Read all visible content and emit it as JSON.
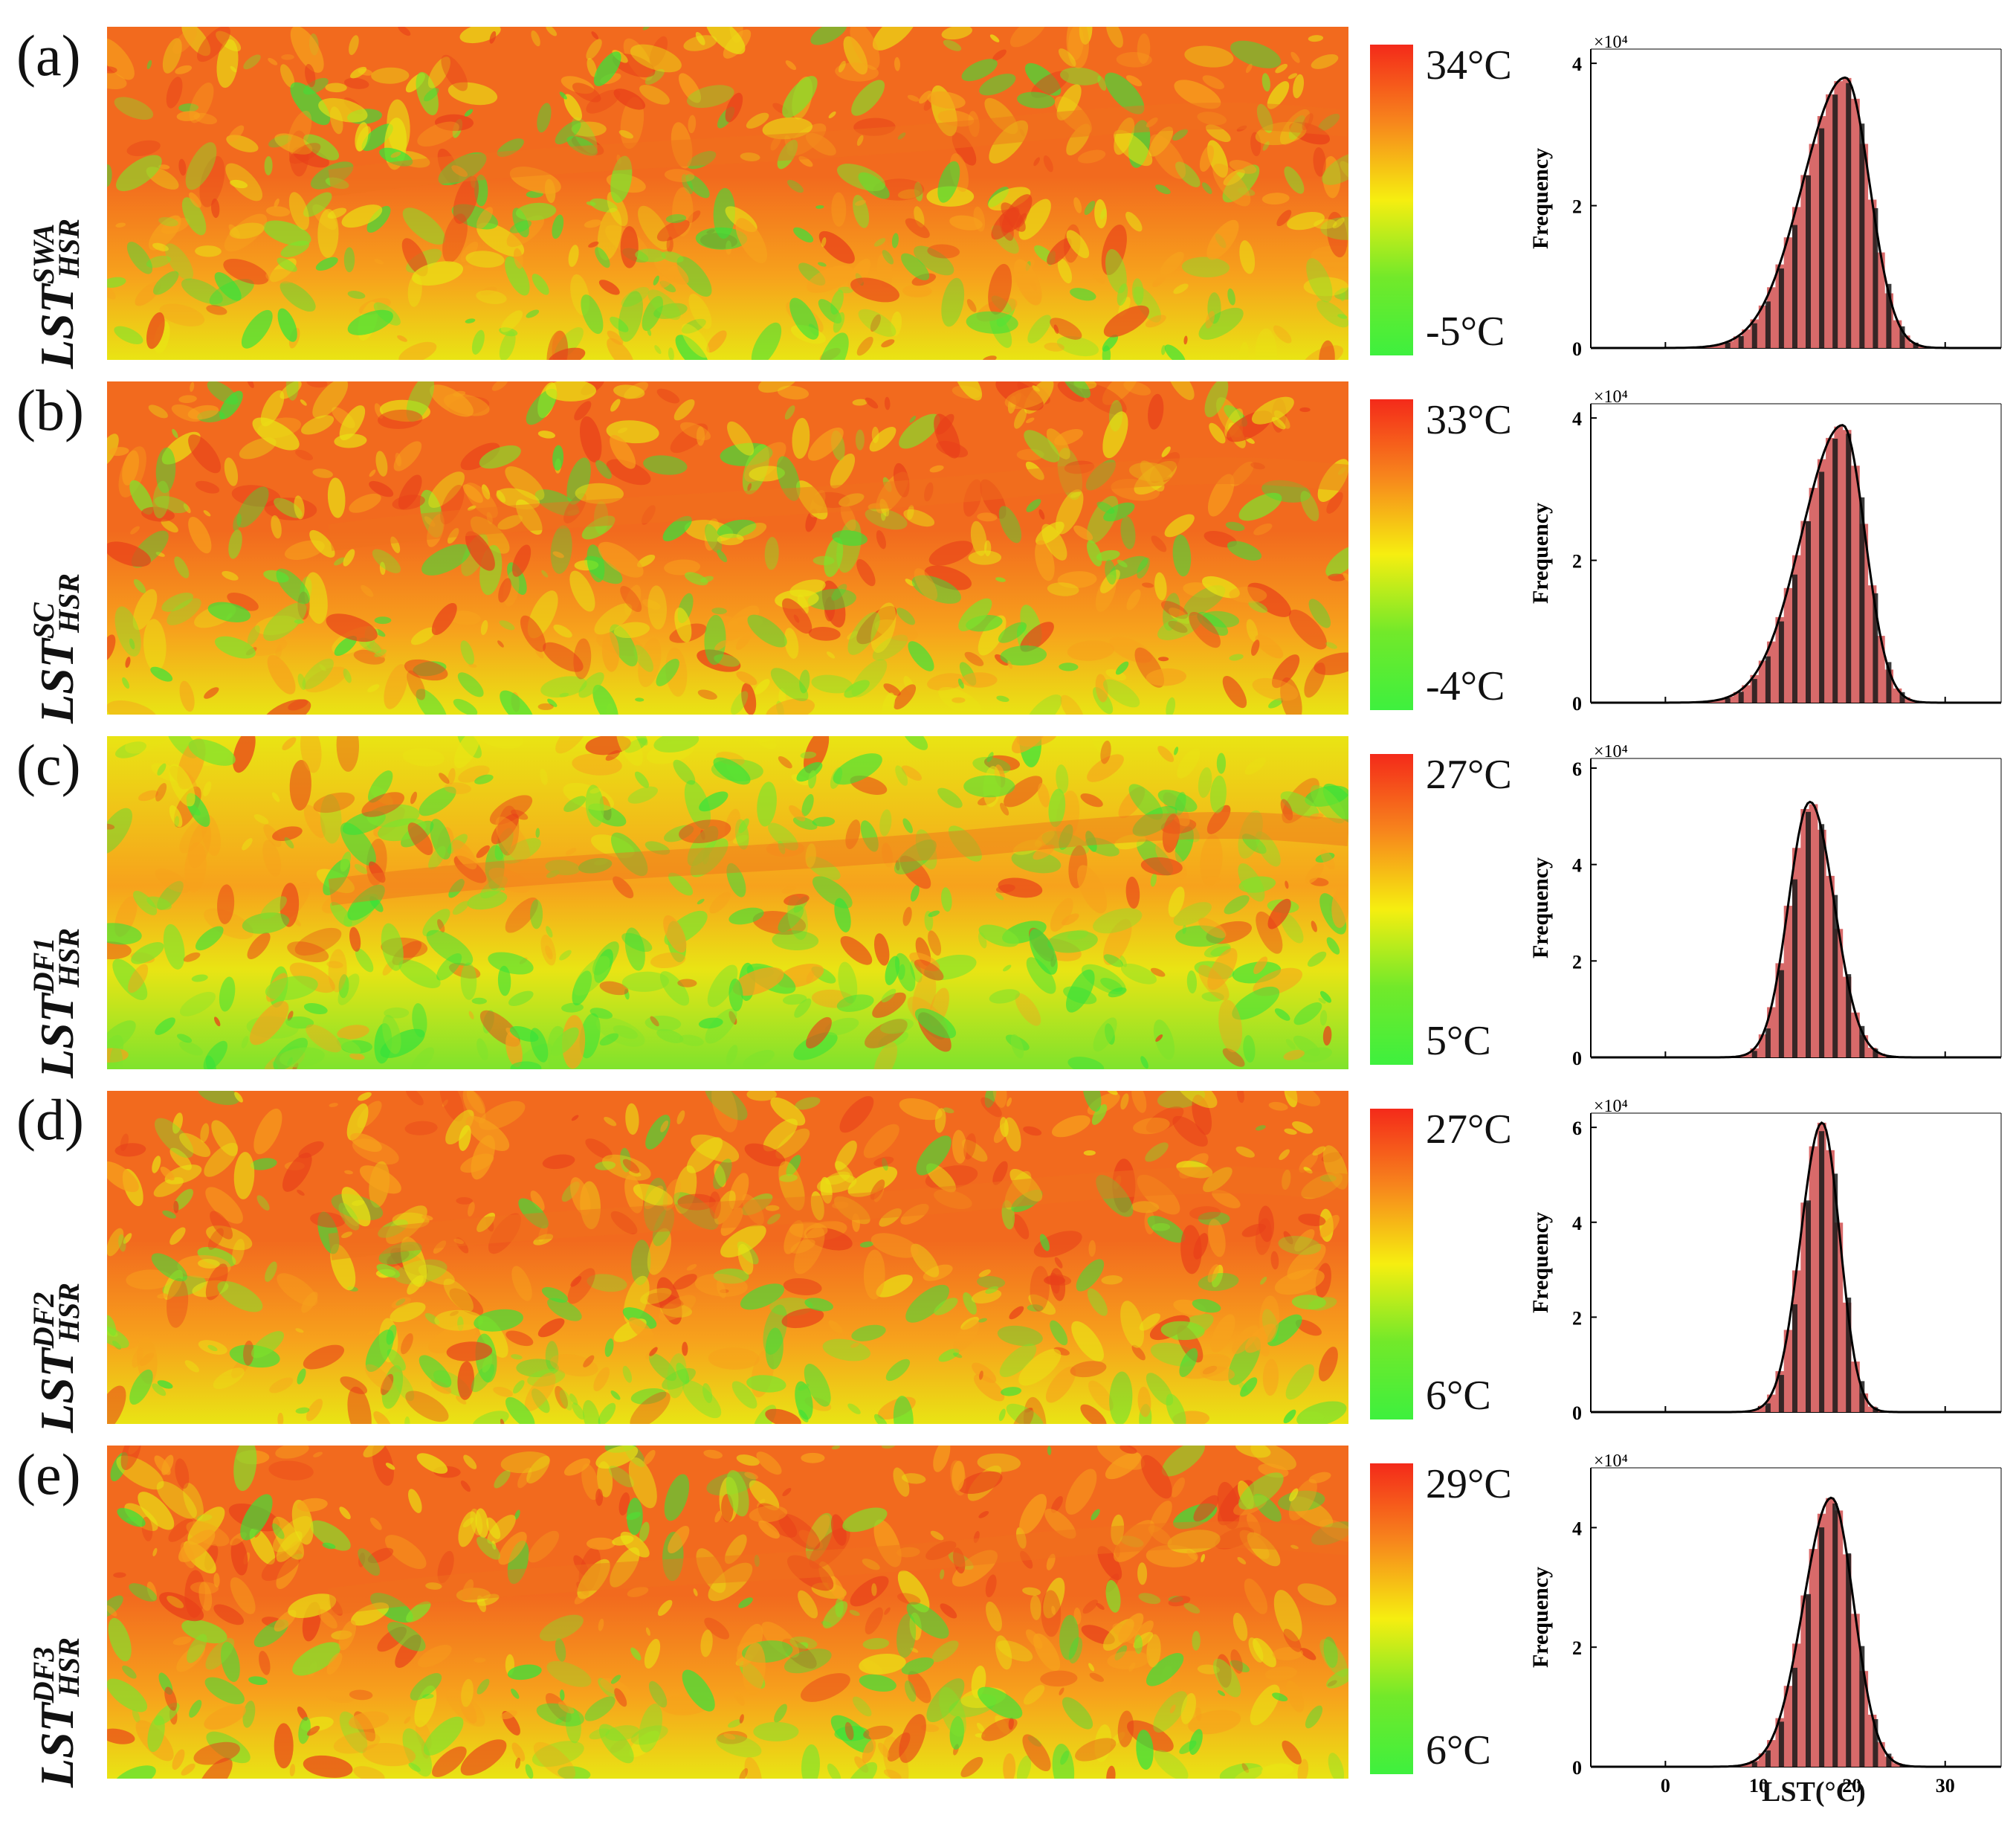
{
  "figure": {
    "panels": [
      {
        "tag": "(a)",
        "ylabel_base": "LST",
        "ylabel_sup": "SWA",
        "ylabel_sub": "HSR",
        "cbar_max": "34°C",
        "cbar_min": "-5°C"
      },
      {
        "tag": "(b)",
        "ylabel_base": "LST",
        "ylabel_sup": "SC",
        "ylabel_sub": "HSR",
        "cbar_max": "33°C",
        "cbar_min": "-4°C"
      },
      {
        "tag": "(c)",
        "ylabel_base": "LST",
        "ylabel_sup": "DF1",
        "ylabel_sub": "HSR",
        "cbar_max": "27°C",
        "cbar_min": "5°C"
      },
      {
        "tag": "(d)",
        "ylabel_base": "LST",
        "ylabel_sup": "DF2",
        "ylabel_sub": "HSR",
        "cbar_max": "27°C",
        "cbar_min": "6°C"
      },
      {
        "tag": "(e)",
        "ylabel_base": "LST",
        "ylabel_sup": "DF3",
        "ylabel_sub": "HSR",
        "cbar_max": "29°C",
        "cbar_min": "6°C"
      }
    ],
    "colormap": [
      "#f42a1a",
      "#f7861c",
      "#f6ee10",
      "#72e92a",
      "#3ef03e"
    ],
    "map_colors": {
      "hot": "#f26a1e",
      "warm": "#f7a21c",
      "mild": "#e9e414",
      "cool": "#7fe32c",
      "cold": "#38e23a"
    }
  },
  "chart_data": [
    {
      "type": "bar",
      "title": "",
      "xlabel": "",
      "ylabel": "Frequency",
      "y_multiplier_label": "×10⁴",
      "xlim": [
        -8,
        36
      ],
      "xticks": [
        0,
        10,
        20,
        30
      ],
      "ylim": [
        0,
        4.2
      ],
      "yticks": [
        0,
        2,
        4
      ],
      "mean": 19.3,
      "sd_left": 4.6,
      "sd_right": 2.6,
      "peak": 3.8,
      "bar_color": "#d86a6a",
      "curve_color": "#000000"
    },
    {
      "type": "bar",
      "title": "",
      "xlabel": "",
      "ylabel": "Frequency",
      "y_multiplier_label": "×10⁴",
      "xlim": [
        -8,
        36
      ],
      "xticks": [
        0,
        10,
        20,
        30
      ],
      "ylim": [
        0,
        4.2
      ],
      "yticks": [
        0,
        2,
        4
      ],
      "mean": 19.0,
      "sd_left": 4.4,
      "sd_right": 2.4,
      "peak": 3.9,
      "bar_color": "#d86a6a",
      "curve_color": "#000000"
    },
    {
      "type": "bar",
      "title": "",
      "xlabel": "",
      "ylabel": "Frequency",
      "y_multiplier_label": "×10⁴",
      "xlim": [
        -8,
        36
      ],
      "xticks": [
        0,
        10,
        20,
        30
      ],
      "ylim": [
        0,
        6.2
      ],
      "yticks": [
        0,
        2,
        4,
        6
      ],
      "mean": 15.5,
      "sd_left": 2.3,
      "sd_right": 2.6,
      "peak": 5.3,
      "bar_color": "#d86a6a",
      "curve_color": "#000000"
    },
    {
      "type": "bar",
      "title": "",
      "xlabel": "",
      "ylabel": "Frequency",
      "y_multiplier_label": "×10⁴",
      "xlim": [
        -8,
        36
      ],
      "xticks": [
        0,
        10,
        20,
        30
      ],
      "ylim": [
        0,
        6.3
      ],
      "yticks": [
        0,
        2,
        4,
        6
      ],
      "mean": 16.8,
      "sd_left": 2.3,
      "sd_right": 1.9,
      "peak": 6.1,
      "bar_color": "#d86a6a",
      "curve_color": "#000000"
    },
    {
      "type": "bar",
      "title": "",
      "xlabel": "LST(°C)",
      "ylabel": "Frequency",
      "y_multiplier_label": "×10⁴",
      "xlim": [
        -8,
        36
      ],
      "xticks": [
        0,
        10,
        20,
        30
      ],
      "ylim": [
        0,
        5.0
      ],
      "yticks": [
        0,
        2,
        4
      ],
      "mean": 17.8,
      "sd_left": 3.0,
      "sd_right": 2.4,
      "peak": 4.5,
      "bar_color": "#d86a6a",
      "curve_color": "#000000"
    }
  ]
}
